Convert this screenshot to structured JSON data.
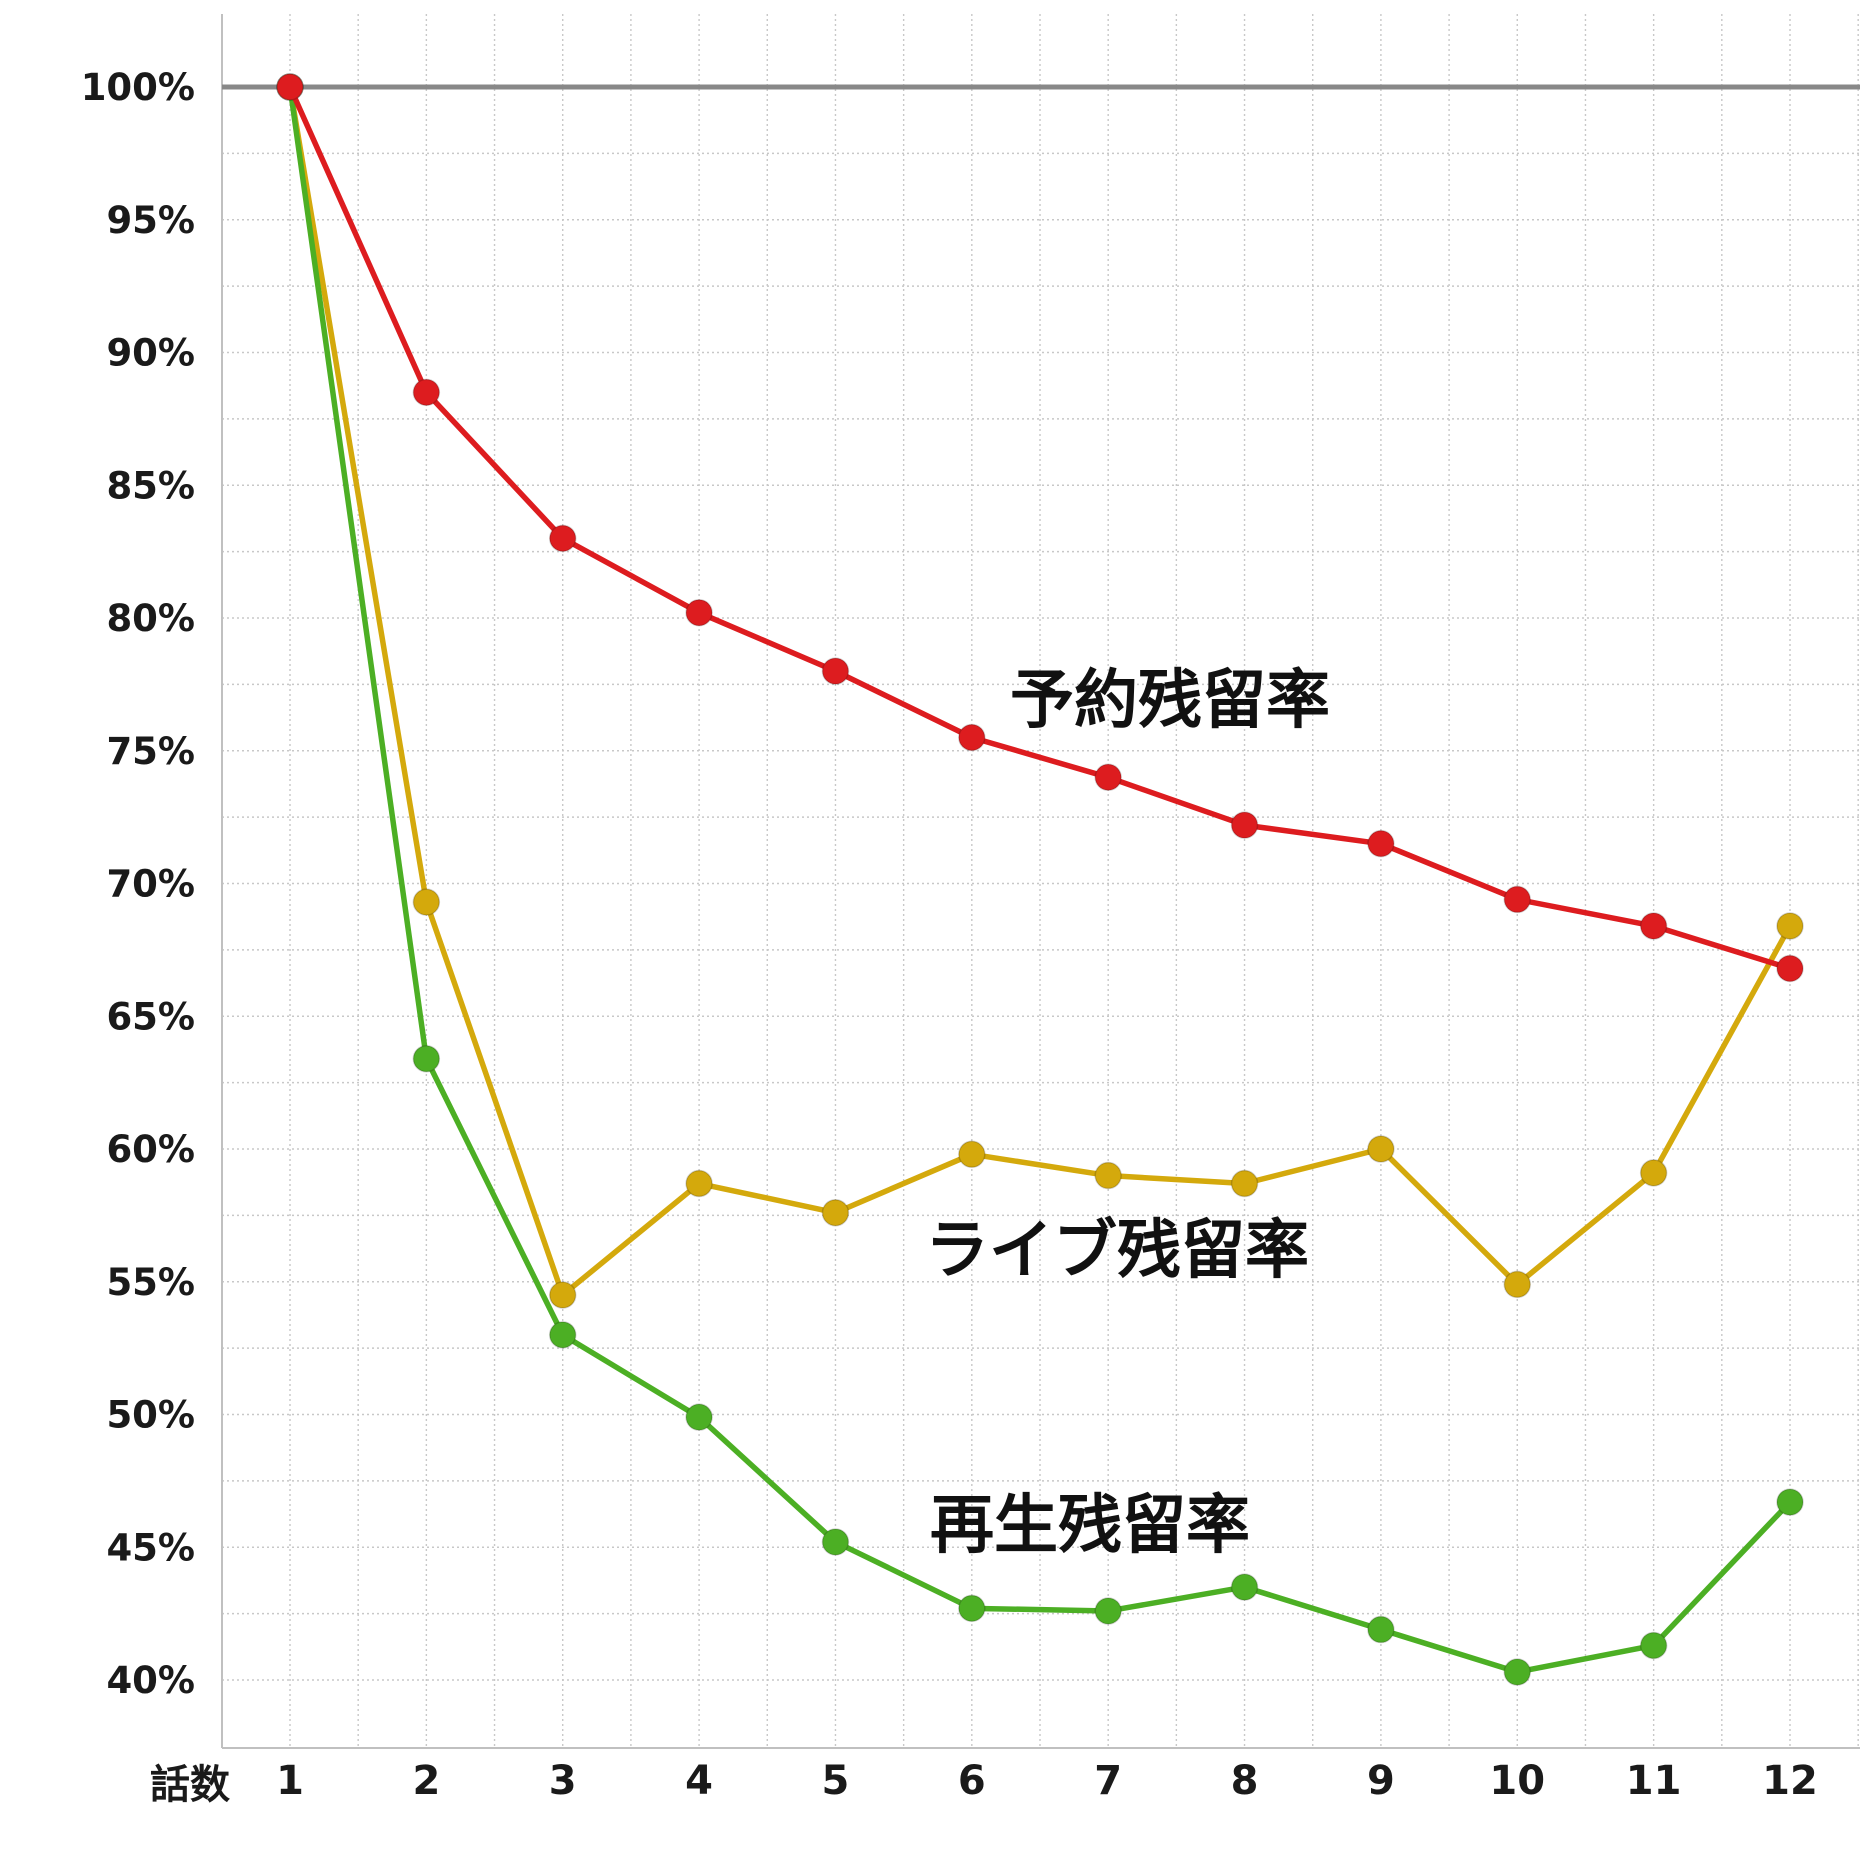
{
  "chart_data": {
    "type": "line",
    "xlabel": "話数",
    "ylabel": "",
    "x": [
      1,
      2,
      3,
      4,
      5,
      6,
      7,
      8,
      9,
      10,
      11,
      12
    ],
    "x_tick_labels": [
      "1",
      "2",
      "3",
      "4",
      "5",
      "6",
      "7",
      "8",
      "9",
      "10",
      "11",
      "12"
    ],
    "ylim": [
      37,
      105
    ],
    "y_ticks": [
      40,
      45,
      50,
      55,
      60,
      65,
      70,
      75,
      80,
      85,
      90,
      95,
      100
    ],
    "y_tick_labels": [
      "40%",
      "45%",
      "50%",
      "55%",
      "60%",
      "65%",
      "70%",
      "75%",
      "80%",
      "85%",
      "90%",
      "95%",
      "100%"
    ],
    "reference_line": 100,
    "grid": true,
    "series": [
      {
        "name": "予約残留率",
        "color": "#dd1c1f",
        "values": [
          100,
          88.5,
          83.0,
          80.2,
          78.0,
          75.5,
          74.0,
          72.2,
          71.5,
          69.4,
          68.4,
          66.8
        ]
      },
      {
        "name": "ライブ残留率",
        "color": "#d4a90c",
        "values": [
          100,
          69.3,
          54.5,
          58.7,
          57.6,
          59.8,
          59.0,
          58.7,
          60.0,
          54.9,
          59.1,
          68.4
        ]
      },
      {
        "name": "再生残留率",
        "color": "#4caf24",
        "values": [
          100,
          63.4,
          53.0,
          49.9,
          45.2,
          42.7,
          42.6,
          43.5,
          41.9,
          40.3,
          41.3,
          46.7
        ]
      }
    ]
  },
  "colors": {
    "reference_line": "#888888",
    "grid": "#c8c8c8",
    "axis": "#c0c0c0"
  }
}
